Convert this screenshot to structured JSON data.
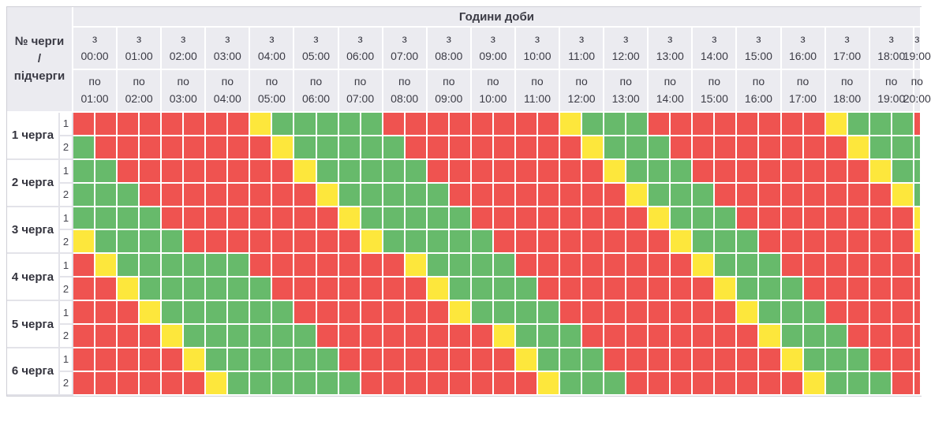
{
  "header": {
    "hours_title": "Години доби",
    "corner_lines": [
      "№ черги",
      "/",
      "підчерги"
    ],
    "from_prefix": "з",
    "to_prefix": "по",
    "columns": [
      {
        "from": "00:00",
        "to": "01:00"
      },
      {
        "from": "01:00",
        "to": "02:00"
      },
      {
        "from": "02:00",
        "to": "03:00"
      },
      {
        "from": "03:00",
        "to": "04:00"
      },
      {
        "from": "04:00",
        "to": "05:00"
      },
      {
        "from": "05:00",
        "to": "06:00"
      },
      {
        "from": "06:00",
        "to": "07:00"
      },
      {
        "from": "07:00",
        "to": "08:00"
      },
      {
        "from": "08:00",
        "to": "09:00"
      },
      {
        "from": "09:00",
        "to": "10:00"
      },
      {
        "from": "10:00",
        "to": "11:00"
      },
      {
        "from": "11:00",
        "to": "12:00"
      },
      {
        "from": "12:00",
        "to": "13:00"
      },
      {
        "from": "13:00",
        "to": "14:00"
      },
      {
        "from": "14:00",
        "to": "15:00"
      },
      {
        "from": "15:00",
        "to": "16:00"
      },
      {
        "from": "16:00",
        "to": "17:00"
      },
      {
        "from": "17:00",
        "to": "18:00"
      },
      {
        "from": "18:00",
        "to": "19:00"
      }
    ],
    "partial_column": {
      "from": "19:00",
      "to": "20:00"
    }
  },
  "colors": {
    "R": "#ef5350",
    "G": "#67ba6b",
    "Y": "#fde73c"
  },
  "queues": [
    {
      "label": "1 черга",
      "rows": [
        {
          "sub": "1",
          "cells": "RRRRRRRRYGGGGGRRRRRRRRYGGGRRRRRRRRYGGGR"
        },
        {
          "sub": "2",
          "cells": "GRRRRRRRRYGGGGGRRRRRRRRYGGGRRRRRRRRYGGG"
        }
      ]
    },
    {
      "label": "2 черга",
      "rows": [
        {
          "sub": "1",
          "cells": "GGRRRRRRRRYGGGGGRRRRRRRRYGGGRRRRRRRRYGG"
        },
        {
          "sub": "2",
          "cells": "GGGRRRRRRRRYGGGGGRRRRRRRRYGGGRRRRRRRRYG"
        }
      ]
    },
    {
      "label": "3 черга",
      "rows": [
        {
          "sub": "1",
          "cells": "GGGGRRRRRRRRYGGGGGRRRRRRRRYGGGRRRRRRRRY"
        },
        {
          "sub": "2",
          "cells": "YGGGGRRRRRRRRYGGGGGRRRRRRRRYGGGRRRRRRRY"
        }
      ]
    },
    {
      "label": "4 черга",
      "rows": [
        {
          "sub": "1",
          "cells": "RYGGGGGGRRRRRRRYGGGGRRRRRRRRYGGGRRRRRRR"
        },
        {
          "sub": "2",
          "cells": "RRYGGGGGGRRRRRRRYGGGGRRRRRRRRYGGGRRRRRR"
        }
      ]
    },
    {
      "label": "5 черга",
      "rows": [
        {
          "sub": "1",
          "cells": "RRRYGGGGGGRRRRRRRYGGGGRRRRRRRRYGGGRRRRR"
        },
        {
          "sub": "2",
          "cells": "RRRRYGGGGGGRRRRRRRRYGGGRRRRRRRRYGGGRRRR"
        }
      ]
    },
    {
      "label": "6 черга",
      "rows": [
        {
          "sub": "1",
          "cells": "RRRRRYGGGGGGRRRRRRRRYGGGRRRRRRRRYGGGRRR"
        },
        {
          "sub": "2",
          "cells": "RRRRRRYGGGGGGRRRRRRRRYGGGRRRRRRRRYGGGRR"
        }
      ]
    }
  ],
  "chart_data": {
    "type": "heatmap",
    "title": "Години доби",
    "row_axis_label": "№ черги / підчерги",
    "cell_duration_minutes": 30,
    "x_hour_ranges": [
      "00:00–01:00",
      "01:00–02:00",
      "02:00–03:00",
      "03:00–04:00",
      "04:00–05:00",
      "05:00–06:00",
      "06:00–07:00",
      "07:00–08:00",
      "08:00–09:00",
      "09:00–10:00",
      "10:00–11:00",
      "11:00–12:00",
      "12:00–13:00",
      "13:00–14:00",
      "14:00–15:00",
      "15:00–16:00",
      "16:00–17:00",
      "17:00–18:00",
      "18:00–19:00",
      "19:00–20:00 (partial)"
    ],
    "rows": [
      {
        "queue": "1 черга",
        "subqueue": "1",
        "half_hour_codes": "RRRRRRRRYGGGGGRRRRRRRRYGGGRRRRRRRRYGGGR"
      },
      {
        "queue": "1 черга",
        "subqueue": "2",
        "half_hour_codes": "GRRRRRRRRYGGGGGRRRRRRRRYGGGRRRRRRRRYGGG"
      },
      {
        "queue": "2 черга",
        "subqueue": "1",
        "half_hour_codes": "GGRRRRRRRRYGGGGGRRRRRRRRYGGGRRRRRRRRYGG"
      },
      {
        "queue": "2 черга",
        "subqueue": "2",
        "half_hour_codes": "GGGRRRRRRRRYGGGGGRRRRRRRRYGGGRRRRRRRRYG"
      },
      {
        "queue": "3 черга",
        "subqueue": "1",
        "half_hour_codes": "GGGGRRRRRRRRYGGGGGRRRRRRRRYGGGRRRRRRRRY"
      },
      {
        "queue": "3 черга",
        "subqueue": "2",
        "half_hour_codes": "YGGGGRRRRRRRRYGGGGGRRRRRRRRYGGGRRRRRRRY"
      },
      {
        "queue": "4 черга",
        "subqueue": "1",
        "half_hour_codes": "RYGGGGGGRRRRRRRYGGGGRRRRRRRRYGGGRRRRRRR"
      },
      {
        "queue": "4 черга",
        "subqueue": "2",
        "half_hour_codes": "RRYGGGGGGRRRRRRRYGGGGRRRRRRRRYGGGRRRRRR"
      },
      {
        "queue": "5 черга",
        "subqueue": "1",
        "half_hour_codes": "RRRYGGGGGGRRRRRRRYGGGGRRRRRRRRYGGGRRRRR"
      },
      {
        "queue": "5 черга",
        "subqueue": "2",
        "half_hour_codes": "RRRRYGGGGGGRRRRRRRRYGGGRRRRRRRRYGGGRRRR"
      },
      {
        "queue": "6 черга",
        "subqueue": "1",
        "half_hour_codes": "RRRRRYGGGGGGRRRRRRRRYGGGRRRRRRRRYGGGRRR"
      },
      {
        "queue": "6 черга",
        "subqueue": "2",
        "half_hour_codes": "RRRRRRYGGGGGGRRRRRRRRYGGGRRRRRRRRYGGGRR"
      }
    ],
    "code_colors": {
      "R": "#ef5350",
      "G": "#67ba6b",
      "Y": "#fde73c"
    },
    "legend_position": "none",
    "grid": true
  }
}
